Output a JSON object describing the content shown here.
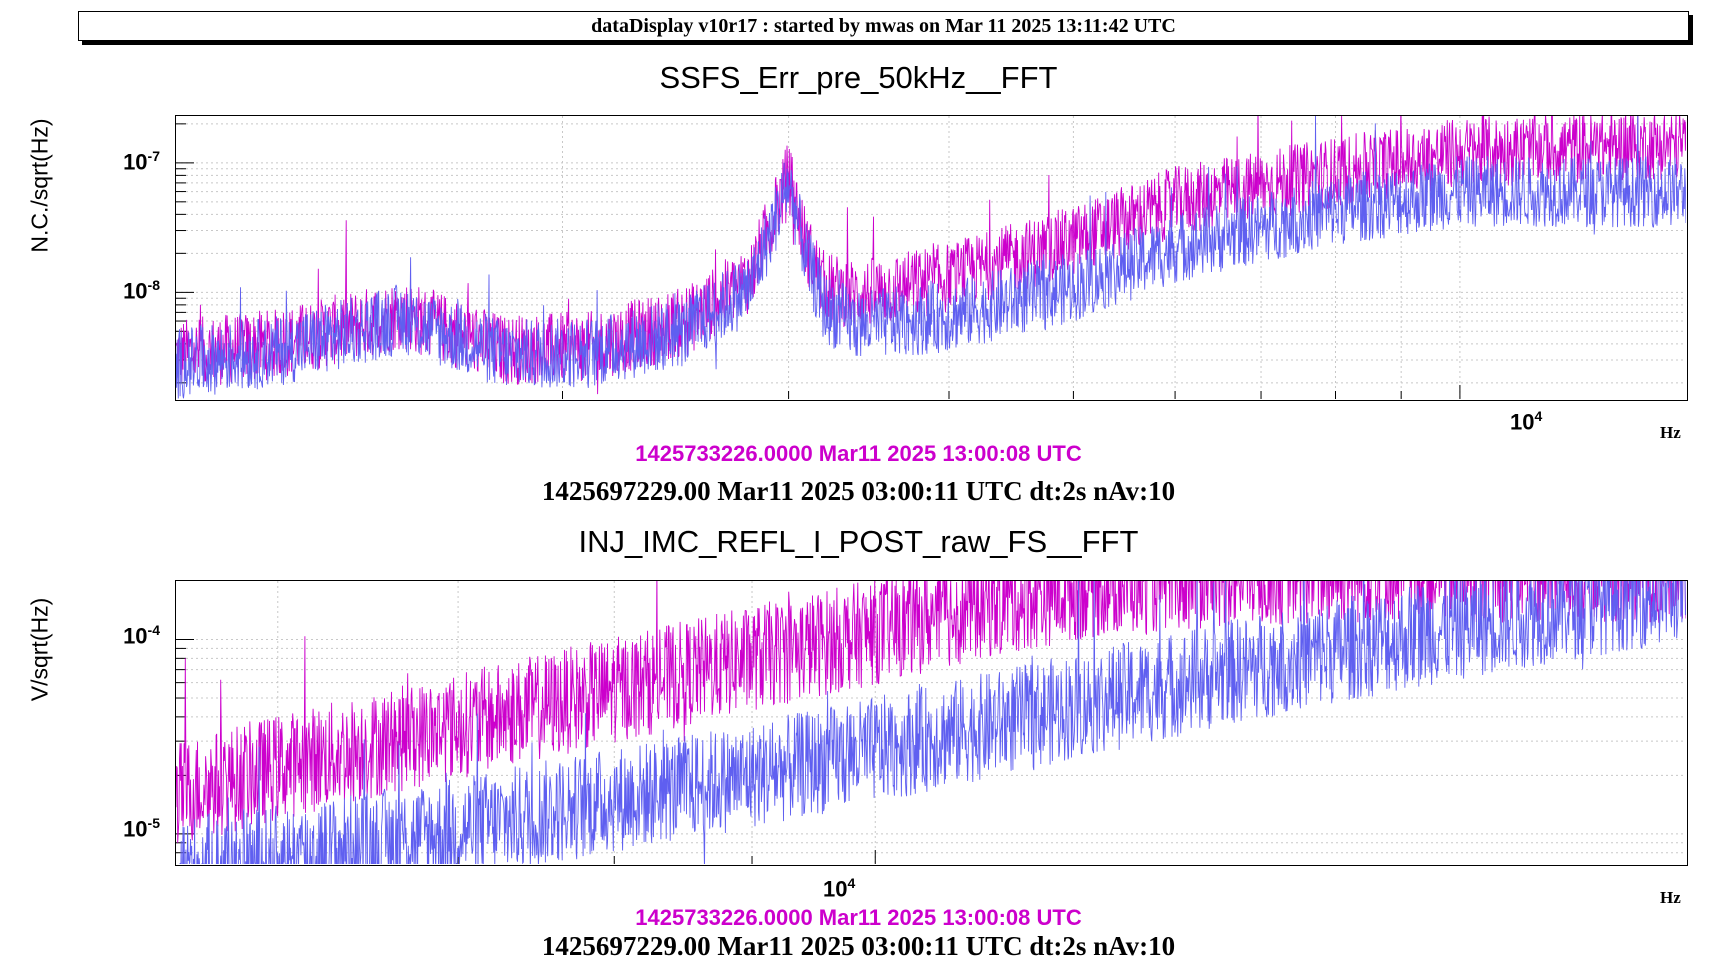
{
  "window_title": "dataDisplay v10r17 : started by mwas on Mar 11 2025 13:11:42 UTC",
  "colors": {
    "reference": "#cc00cc",
    "measurement": "#5f5ff0",
    "grid": "#c8c8c8"
  },
  "chart_data": [
    {
      "type": "line",
      "title": "SSFS_Err_pre_50kHz__FFT",
      "ylabel": "N.C./sqrt(Hz)",
      "xlabel": "Hz",
      "xscale": "log",
      "yscale": "log",
      "xlim": [
        1000,
        15000
      ],
      "ylim": [
        1.5e-09,
        2.3e-07
      ],
      "y_ticks": [
        {
          "base": "10",
          "exp": "-8"
        },
        {
          "base": "10",
          "exp": "-7"
        }
      ],
      "x_ticks": [
        {
          "base": "10",
          "exp": "4"
        }
      ],
      "grid": true,
      "series": [
        {
          "role": "reference",
          "x": [
            1000,
            1200,
            1500,
            1800,
            2100,
            2500,
            2800,
            3000,
            3100,
            3200,
            3400,
            4000,
            5000,
            6000,
            8000,
            10000,
            12000,
            15000
          ],
          "y": [
            3.3e-09,
            4e-09,
            6.8e-09,
            3.6e-09,
            3.8e-09,
            6e-09,
            1.3e-08,
            8e-08,
            2.2e-08,
            1.1e-08,
            9.5e-09,
            1.3e-08,
            2.5e-08,
            5e-08,
            8.5e-08,
            1.2e-07,
            1.3e-07,
            1.4e-07
          ]
        },
        {
          "role": "measurement",
          "x": [
            1000,
            1200,
            1500,
            1800,
            2100,
            2500,
            2800,
            3000,
            3100,
            3200,
            3400,
            4000,
            5000,
            6000,
            8000,
            10000,
            12000,
            15000
          ],
          "y": [
            2.8e-09,
            3.5e-09,
            6.3e-09,
            3.3e-09,
            3.4e-09,
            5e-09,
            1.1e-08,
            7e-08,
            1.8e-08,
            7.5e-09,
            5.5e-09,
            6.5e-09,
            1.1e-08,
            2.2e-08,
            4.3e-08,
            6e-08,
            6e-08,
            6e-08
          ]
        }
      ],
      "reference_time": "1425733226.0000 Mar11 2025 13:00:08 UTC",
      "measurement_time": "1425697229.00 Mar11 2025 03:00:11 UTC dt:2s nAv:10"
    },
    {
      "type": "line",
      "title": "INJ_IMC_REFL_I_POST_raw_FS__FFT",
      "ylabel": "V/sqrt(Hz)",
      "xlabel": "Hz",
      "xscale": "log",
      "yscale": "log",
      "xlim": [
        5500,
        20000
      ],
      "ylim": [
        7e-06,
        0.0002
      ],
      "y_ticks": [
        {
          "base": "10",
          "exp": "-5"
        },
        {
          "base": "10",
          "exp": "-4"
        }
      ],
      "x_ticks": [
        {
          "base": "10",
          "exp": "4"
        }
      ],
      "grid": true,
      "series": [
        {
          "role": "reference",
          "x": [
            5500,
            6000,
            7000,
            8000,
            9000,
            10000,
            11000,
            12000,
            14000,
            16000,
            18000,
            20000
          ],
          "y": [
            1.6e-05,
            2.2e-05,
            3.6e-05,
            5.5e-05,
            8e-05,
            0.00011,
            0.00015,
            0.00019,
            0.00022,
            0.00023,
            0.00023,
            0.00023
          ]
        },
        {
          "role": "measurement",
          "x": [
            5500,
            6000,
            7000,
            8000,
            9000,
            10000,
            11000,
            12000,
            14000,
            16000,
            18000,
            20000
          ],
          "y": [
            6.5e-06,
            7.5e-06,
            1.05e-05,
            1.5e-05,
            2e-05,
            2.7e-05,
            3.6e-05,
            4.7e-05,
            7.5e-05,
            0.000108,
            0.000145,
            0.000185
          ]
        }
      ],
      "reference_time": "1425733226.0000 Mar11 2025 13:00:08 UTC",
      "measurement_time": "1425697229.00 Mar11 2025 03:00:11 UTC dt:2s nAv:10"
    }
  ]
}
